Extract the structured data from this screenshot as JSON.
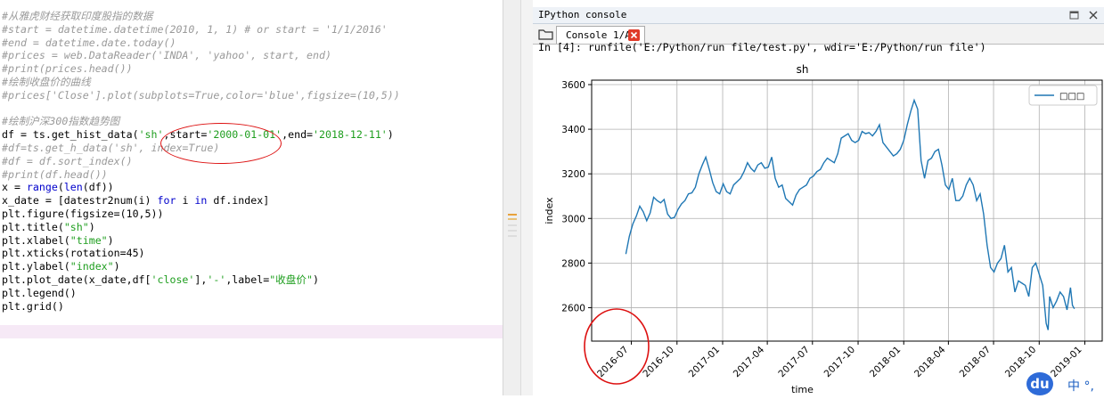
{
  "editor": {
    "lines": [
      [
        [
          "cmt",
          "#从雅虎财经获取印度股指的数据"
        ]
      ],
      [
        [
          "cmt",
          "#start = datetime.datetime(2010, 1, 1) # or start = '1/1/2016'"
        ]
      ],
      [
        [
          "cmt",
          "#end = datetime.date.today()"
        ]
      ],
      [
        [
          "cmt",
          "#prices = web.DataReader('INDA', 'yahoo', start, end)"
        ]
      ],
      [
        [
          "cmt",
          "#print(prices.head())"
        ]
      ],
      [
        [
          "cmt",
          "#绘制收盘价的曲线"
        ]
      ],
      [
        [
          "cmt",
          "#prices['Close'].plot(subplots=True,color='blue',figsize=(10,5))"
        ]
      ],
      [
        [
          "txt",
          ""
        ]
      ],
      [
        [
          "cmt",
          "#绘制沪深300指数趋势图"
        ]
      ],
      [
        [
          "txt",
          "df = ts.get_hist_data("
        ],
        [
          "str",
          "'sh'"
        ],
        [
          "txt",
          ",start="
        ],
        [
          "str",
          "'2000-01-01'"
        ],
        [
          "txt",
          ",end="
        ],
        [
          "str",
          "'2018-12-11'"
        ],
        [
          "txt",
          ")"
        ]
      ],
      [
        [
          "cmt",
          "#df=ts.get_h_data('sh', index=True)"
        ]
      ],
      [
        [
          "cmt",
          "#df = df.sort_index()"
        ]
      ],
      [
        [
          "cmt",
          "#print(df.head())"
        ]
      ],
      [
        [
          "txt",
          "x = "
        ],
        [
          "kw",
          "range"
        ],
        [
          "txt",
          "("
        ],
        [
          "kw",
          "len"
        ],
        [
          "txt",
          "(df))"
        ]
      ],
      [
        [
          "txt",
          "x_date = [datestr2num(i) "
        ],
        [
          "kw",
          "for"
        ],
        [
          "txt",
          " i "
        ],
        [
          "kw",
          "in"
        ],
        [
          "txt",
          " df.index]"
        ]
      ],
      [
        [
          "txt",
          "plt.figure(figsize=(10,5))"
        ]
      ],
      [
        [
          "txt",
          "plt.title("
        ],
        [
          "str",
          "\"sh\""
        ],
        [
          "txt",
          ")"
        ]
      ],
      [
        [
          "txt",
          "plt.xlabel("
        ],
        [
          "str",
          "\"time\""
        ],
        [
          "txt",
          ")"
        ]
      ],
      [
        [
          "txt",
          "plt.xticks(rotation=45)"
        ]
      ],
      [
        [
          "txt",
          "plt.ylabel("
        ],
        [
          "str",
          "\"index\""
        ],
        [
          "txt",
          ")"
        ]
      ],
      [
        [
          "txt",
          "plt.plot_date(x_date,df["
        ],
        [
          "str",
          "'close'"
        ],
        [
          "txt",
          "],"
        ],
        [
          "str",
          "'-'"
        ],
        [
          "txt",
          ",label="
        ],
        [
          "str",
          "\"收盘价\""
        ],
        [
          "txt",
          ")"
        ]
      ],
      [
        [
          "txt",
          "plt.legend()"
        ]
      ],
      [
        [
          "txt",
          "plt.grid()"
        ]
      ]
    ]
  },
  "console": {
    "pane_title": "IPython console",
    "tab_label": "Console 1/A",
    "input_line": "In [4]: runfile('E:/Python/run file/test.py', wdir='E:/Python/run file')",
    "folder_icon": "folder-icon",
    "close_icon": "close-icon"
  },
  "ime": {
    "badge": "du",
    "text": "中 °,"
  },
  "colors": {
    "line": "#1f77b4",
    "annotation": "#dd1111",
    "comment": "#9a9a9a",
    "string": "#1e9e1e",
    "keyword": "#0000cc"
  },
  "chart_data": {
    "type": "line",
    "title": "sh",
    "xlabel": "time",
    "ylabel": "index",
    "legend": {
      "position": "top-right",
      "entries": [
        "□□□"
      ]
    },
    "grid": true,
    "x_ticks": [
      "2016-07",
      "2016-10",
      "2017-01",
      "2017-04",
      "2017-07",
      "2017-10",
      "2018-01",
      "2018-04",
      "2018-07",
      "2018-10",
      "2019-01"
    ],
    "y_ticks": [
      2600,
      2800,
      3000,
      3200,
      3400,
      3600
    ],
    "xlim": [
      "2016-04-12",
      "2019-02-05"
    ],
    "ylim": [
      2450,
      3620
    ],
    "series": [
      {
        "name": "□□□",
        "points": [
          [
            "2016-06-20",
            2840
          ],
          [
            "2016-06-27",
            2920
          ],
          [
            "2016-07-04",
            2975
          ],
          [
            "2016-07-11",
            3010
          ],
          [
            "2016-07-18",
            3055
          ],
          [
            "2016-07-25",
            3030
          ],
          [
            "2016-08-01",
            2990
          ],
          [
            "2016-08-08",
            3025
          ],
          [
            "2016-08-15",
            3095
          ],
          [
            "2016-08-22",
            3080
          ],
          [
            "2016-08-29",
            3070
          ],
          [
            "2016-09-05",
            3085
          ],
          [
            "2016-09-12",
            3020
          ],
          [
            "2016-09-19",
            3000
          ],
          [
            "2016-09-26",
            3005
          ],
          [
            "2016-10-03",
            3040
          ],
          [
            "2016-10-10",
            3065
          ],
          [
            "2016-10-17",
            3080
          ],
          [
            "2016-10-24",
            3110
          ],
          [
            "2016-10-31",
            3115
          ],
          [
            "2016-11-07",
            3140
          ],
          [
            "2016-11-14",
            3200
          ],
          [
            "2016-11-21",
            3240
          ],
          [
            "2016-11-28",
            3275
          ],
          [
            "2016-12-05",
            3220
          ],
          [
            "2016-12-12",
            3160
          ],
          [
            "2016-12-19",
            3120
          ],
          [
            "2016-12-26",
            3110
          ],
          [
            "2017-01-02",
            3155
          ],
          [
            "2017-01-09",
            3120
          ],
          [
            "2017-01-16",
            3110
          ],
          [
            "2017-01-23",
            3150
          ],
          [
            "2017-02-06",
            3180
          ],
          [
            "2017-02-13",
            3210
          ],
          [
            "2017-02-20",
            3250
          ],
          [
            "2017-02-27",
            3225
          ],
          [
            "2017-03-06",
            3210
          ],
          [
            "2017-03-13",
            3240
          ],
          [
            "2017-03-20",
            3250
          ],
          [
            "2017-03-27",
            3225
          ],
          [
            "2017-04-03",
            3230
          ],
          [
            "2017-04-10",
            3275
          ],
          [
            "2017-04-17",
            3180
          ],
          [
            "2017-04-24",
            3140
          ],
          [
            "2017-05-01",
            3150
          ],
          [
            "2017-05-08",
            3090
          ],
          [
            "2017-05-15",
            3075
          ],
          [
            "2017-05-22",
            3060
          ],
          [
            "2017-05-29",
            3105
          ],
          [
            "2017-06-05",
            3130
          ],
          [
            "2017-06-12",
            3140
          ],
          [
            "2017-06-19",
            3150
          ],
          [
            "2017-06-26",
            3180
          ],
          [
            "2017-07-03",
            3190
          ],
          [
            "2017-07-10",
            3210
          ],
          [
            "2017-07-17",
            3220
          ],
          [
            "2017-07-24",
            3250
          ],
          [
            "2017-07-31",
            3270
          ],
          [
            "2017-08-07",
            3260
          ],
          [
            "2017-08-14",
            3250
          ],
          [
            "2017-08-21",
            3290
          ],
          [
            "2017-08-28",
            3360
          ],
          [
            "2017-09-04",
            3370
          ],
          [
            "2017-09-11",
            3380
          ],
          [
            "2017-09-18",
            3350
          ],
          [
            "2017-09-25",
            3340
          ],
          [
            "2017-10-02",
            3350
          ],
          [
            "2017-10-09",
            3390
          ],
          [
            "2017-10-16",
            3380
          ],
          [
            "2017-10-23",
            3385
          ],
          [
            "2017-10-30",
            3370
          ],
          [
            "2017-11-06",
            3390
          ],
          [
            "2017-11-13",
            3420
          ],
          [
            "2017-11-20",
            3340
          ],
          [
            "2017-11-27",
            3320
          ],
          [
            "2017-12-04",
            3300
          ],
          [
            "2017-12-11",
            3280
          ],
          [
            "2017-12-18",
            3290
          ],
          [
            "2017-12-25",
            3310
          ],
          [
            "2018-01-01",
            3350
          ],
          [
            "2018-01-08",
            3420
          ],
          [
            "2018-01-15",
            3480
          ],
          [
            "2018-01-22",
            3530
          ],
          [
            "2018-01-29",
            3490
          ],
          [
            "2018-02-05",
            3260
          ],
          [
            "2018-02-12",
            3180
          ],
          [
            "2018-02-19",
            3260
          ],
          [
            "2018-02-26",
            3270
          ],
          [
            "2018-03-05",
            3300
          ],
          [
            "2018-03-12",
            3310
          ],
          [
            "2018-03-19",
            3240
          ],
          [
            "2018-03-26",
            3150
          ],
          [
            "2018-04-02",
            3130
          ],
          [
            "2018-04-09",
            3180
          ],
          [
            "2018-04-16",
            3080
          ],
          [
            "2018-04-23",
            3080
          ],
          [
            "2018-04-30",
            3100
          ],
          [
            "2018-05-07",
            3150
          ],
          [
            "2018-05-14",
            3180
          ],
          [
            "2018-05-21",
            3150
          ],
          [
            "2018-05-28",
            3080
          ],
          [
            "2018-06-04",
            3110
          ],
          [
            "2018-06-11",
            3020
          ],
          [
            "2018-06-18",
            2880
          ],
          [
            "2018-06-25",
            2780
          ],
          [
            "2018-07-02",
            2760
          ],
          [
            "2018-07-09",
            2800
          ],
          [
            "2018-07-16",
            2820
          ],
          [
            "2018-07-23",
            2880
          ],
          [
            "2018-07-30",
            2760
          ],
          [
            "2018-08-06",
            2780
          ],
          [
            "2018-08-13",
            2670
          ],
          [
            "2018-08-20",
            2720
          ],
          [
            "2018-08-27",
            2710
          ],
          [
            "2018-09-03",
            2700
          ],
          [
            "2018-09-10",
            2650
          ],
          [
            "2018-09-17",
            2780
          ],
          [
            "2018-09-24",
            2800
          ],
          [
            "2018-10-08",
            2700
          ],
          [
            "2018-10-15",
            2530
          ],
          [
            "2018-10-19",
            2500
          ],
          [
            "2018-10-22",
            2650
          ],
          [
            "2018-10-29",
            2600
          ],
          [
            "2018-11-05",
            2630
          ],
          [
            "2018-11-12",
            2670
          ],
          [
            "2018-11-19",
            2650
          ],
          [
            "2018-11-26",
            2590
          ],
          [
            "2018-12-03",
            2690
          ],
          [
            "2018-12-07",
            2610
          ],
          [
            "2018-12-11",
            2595
          ]
        ]
      }
    ]
  }
}
